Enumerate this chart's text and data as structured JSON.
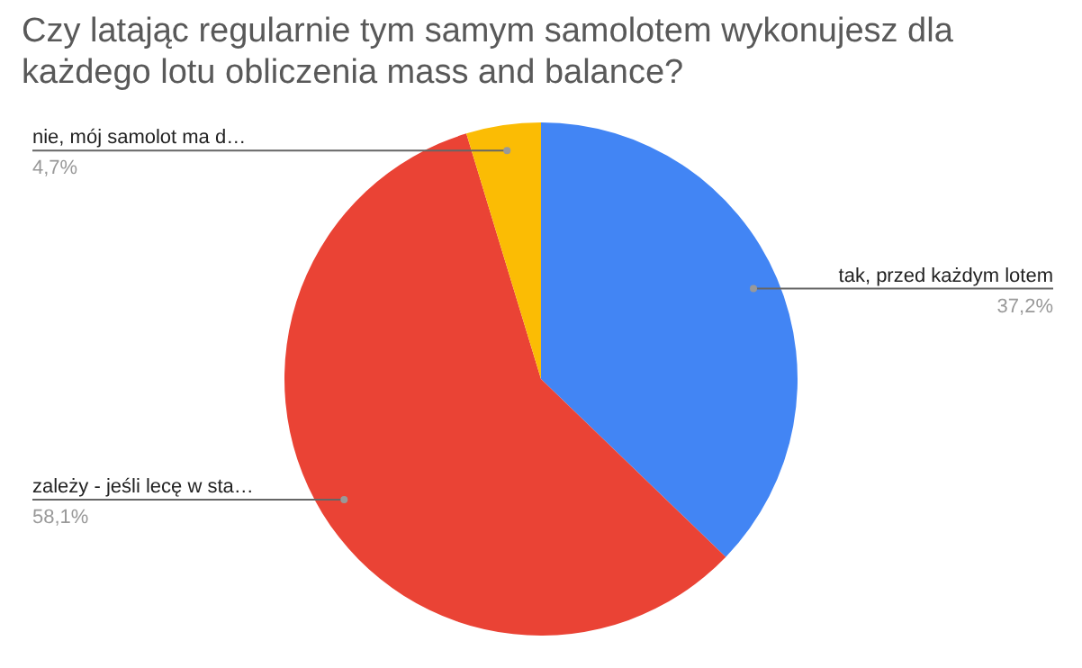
{
  "chart_data": {
    "type": "pie",
    "title": "Czy latając regularnie tym samym samolotem wykonujesz dla każdego lotu obliczenia mass and balance?",
    "categories": [
      "tak, przed każdym lotem",
      "zależy - jeśli lecę w sta…",
      "nie, mój samolot ma d…"
    ],
    "values": [
      37.2,
      58.1,
      4.7
    ],
    "colors": [
      "#4285f4",
      "#ea4335",
      "#fbbc04"
    ],
    "value_labels": [
      "37,2%",
      "58,1%",
      "4,7%"
    ],
    "legend": false
  }
}
